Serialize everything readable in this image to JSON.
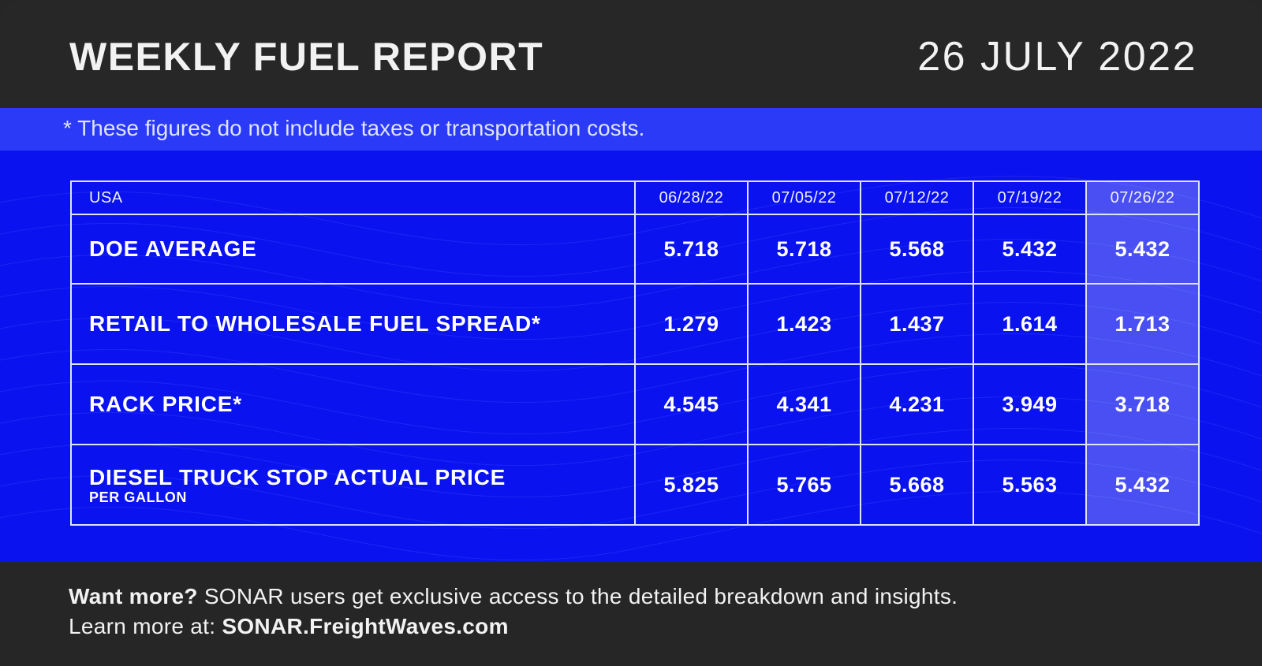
{
  "header": {
    "title": "WEEKLY FUEL REPORT",
    "date": "26 JULY 2022"
  },
  "disclaimer": "* These figures do not include taxes or transportation costs.",
  "table": {
    "region": "USA",
    "columns": [
      "06/28/22",
      "07/05/22",
      "07/12/22",
      "07/19/22",
      "07/26/22"
    ],
    "highlighted_column": "07/26/22",
    "rows": [
      {
        "label": "DOE AVERAGE",
        "sublabel": "",
        "values": [
          "5.718",
          "5.718",
          "5.568",
          "5.432",
          "5.432"
        ]
      },
      {
        "label": "RETAIL TO WHOLESALE FUEL SPREAD*",
        "sublabel": "",
        "values": [
          "1.279",
          "1.423",
          "1.437",
          "1.614",
          "1.713"
        ]
      },
      {
        "label": "RACK PRICE*",
        "sublabel": "",
        "values": [
          "4.545",
          "4.341",
          "4.231",
          "3.949",
          "3.718"
        ]
      },
      {
        "label": "DIESEL TRUCK STOP ACTUAL PRICE",
        "sublabel": "PER GALLON",
        "values": [
          "5.825",
          "5.765",
          "5.668",
          "5.563",
          "5.432"
        ]
      }
    ]
  },
  "footer": {
    "line1_bold": "Want more?",
    "line1_text": " SONAR users get exclusive access to the detailed breakdown and insights.",
    "line2_text": "Learn more at: ",
    "line2_link": "SONAR.FreightWaves.com"
  },
  "colors": {
    "background_dark": "#262626",
    "accent_blue": "#0a12ef",
    "band_blue": "#2a3af7",
    "text_light": "#f2f2f2"
  }
}
